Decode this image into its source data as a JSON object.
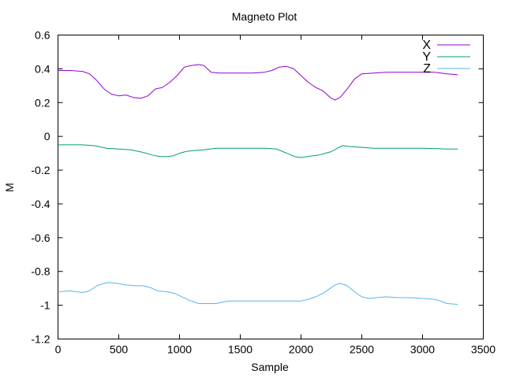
{
  "chart_data": {
    "type": "line",
    "title": "Magneto Plot",
    "xlabel": "Sample",
    "ylabel": "M",
    "xlim": [
      0,
      3500
    ],
    "ylim": [
      -1.2,
      0.6
    ],
    "xticks": [
      0,
      500,
      1000,
      1500,
      2000,
      2500,
      3000,
      3500
    ],
    "yticks": [
      -1.2,
      -1,
      -0.8,
      -0.6,
      -0.4,
      -0.2,
      0,
      0.2,
      0.4,
      0.6
    ],
    "ytick_labels": [
      "-1.2",
      "-1",
      "-0.8",
      "-0.6",
      "-0.4",
      "-0.2",
      "0",
      "0.2",
      "0.4",
      "0.6"
    ],
    "grid": false,
    "legend_position": "top-right",
    "series": [
      {
        "name": "X",
        "color": "#9400d3",
        "x": [
          0,
          100,
          200,
          260,
          320,
          380,
          440,
          500,
          560,
          620,
          680,
          740,
          800,
          860,
          920,
          980,
          1040,
          1100,
          1160,
          1200,
          1260,
          1320,
          1400,
          1500,
          1600,
          1700,
          1760,
          1820,
          1880,
          1940,
          2000,
          2060,
          2120,
          2180,
          2240,
          2280,
          2320,
          2380,
          2440,
          2500,
          2600,
          2700,
          2800,
          2900,
          3000,
          3100,
          3200,
          3290
        ],
        "y": [
          0.39,
          0.39,
          0.385,
          0.37,
          0.33,
          0.28,
          0.25,
          0.24,
          0.245,
          0.23,
          0.225,
          0.24,
          0.28,
          0.29,
          0.32,
          0.36,
          0.41,
          0.42,
          0.425,
          0.42,
          0.38,
          0.375,
          0.375,
          0.375,
          0.375,
          0.38,
          0.39,
          0.41,
          0.415,
          0.4,
          0.36,
          0.32,
          0.29,
          0.27,
          0.23,
          0.215,
          0.23,
          0.28,
          0.34,
          0.37,
          0.375,
          0.38,
          0.38,
          0.38,
          0.38,
          0.38,
          0.37,
          0.365
        ]
      },
      {
        "name": "Y",
        "color": "#009e73",
        "x": [
          0,
          100,
          200,
          300,
          400,
          500,
          600,
          700,
          750,
          800,
          850,
          900,
          950,
          1000,
          1050,
          1100,
          1200,
          1300,
          1400,
          1500,
          1600,
          1700,
          1800,
          1850,
          1900,
          1950,
          2000,
          2050,
          2100,
          2150,
          2200,
          2250,
          2300,
          2340,
          2400,
          2500,
          2600,
          2700,
          2800,
          2900,
          3000,
          3100,
          3200,
          3290
        ],
        "y": [
          -0.05,
          -0.05,
          -0.05,
          -0.055,
          -0.07,
          -0.075,
          -0.08,
          -0.095,
          -0.105,
          -0.115,
          -0.12,
          -0.12,
          -0.115,
          -0.1,
          -0.09,
          -0.085,
          -0.08,
          -0.07,
          -0.07,
          -0.07,
          -0.07,
          -0.07,
          -0.075,
          -0.09,
          -0.105,
          -0.12,
          -0.125,
          -0.12,
          -0.115,
          -0.11,
          -0.1,
          -0.09,
          -0.07,
          -0.055,
          -0.06,
          -0.065,
          -0.07,
          -0.07,
          -0.07,
          -0.07,
          -0.07,
          -0.072,
          -0.075,
          -0.075
        ]
      },
      {
        "name": "Z",
        "color": "#56b4e9",
        "x": [
          0,
          100,
          200,
          260,
          320,
          380,
          420,
          480,
          560,
          640,
          700,
          760,
          820,
          900,
          960,
          1020,
          1080,
          1160,
          1200,
          1300,
          1400,
          1500,
          1600,
          1700,
          1800,
          1900,
          2000,
          2060,
          2120,
          2180,
          2240,
          2280,
          2320,
          2380,
          2440,
          2500,
          2560,
          2620,
          2700,
          2800,
          2900,
          3000,
          3100,
          3150,
          3200,
          3290
        ],
        "y": [
          -0.92,
          -0.915,
          -0.925,
          -0.915,
          -0.885,
          -0.87,
          -0.865,
          -0.87,
          -0.88,
          -0.885,
          -0.885,
          -0.895,
          -0.915,
          -0.92,
          -0.93,
          -0.95,
          -0.97,
          -0.99,
          -0.99,
          -0.99,
          -0.975,
          -0.975,
          -0.975,
          -0.975,
          -0.975,
          -0.975,
          -0.975,
          -0.965,
          -0.95,
          -0.93,
          -0.9,
          -0.88,
          -0.87,
          -0.885,
          -0.92,
          -0.95,
          -0.96,
          -0.955,
          -0.95,
          -0.955,
          -0.955,
          -0.96,
          -0.965,
          -0.975,
          -0.99,
          -0.995
        ]
      }
    ]
  }
}
